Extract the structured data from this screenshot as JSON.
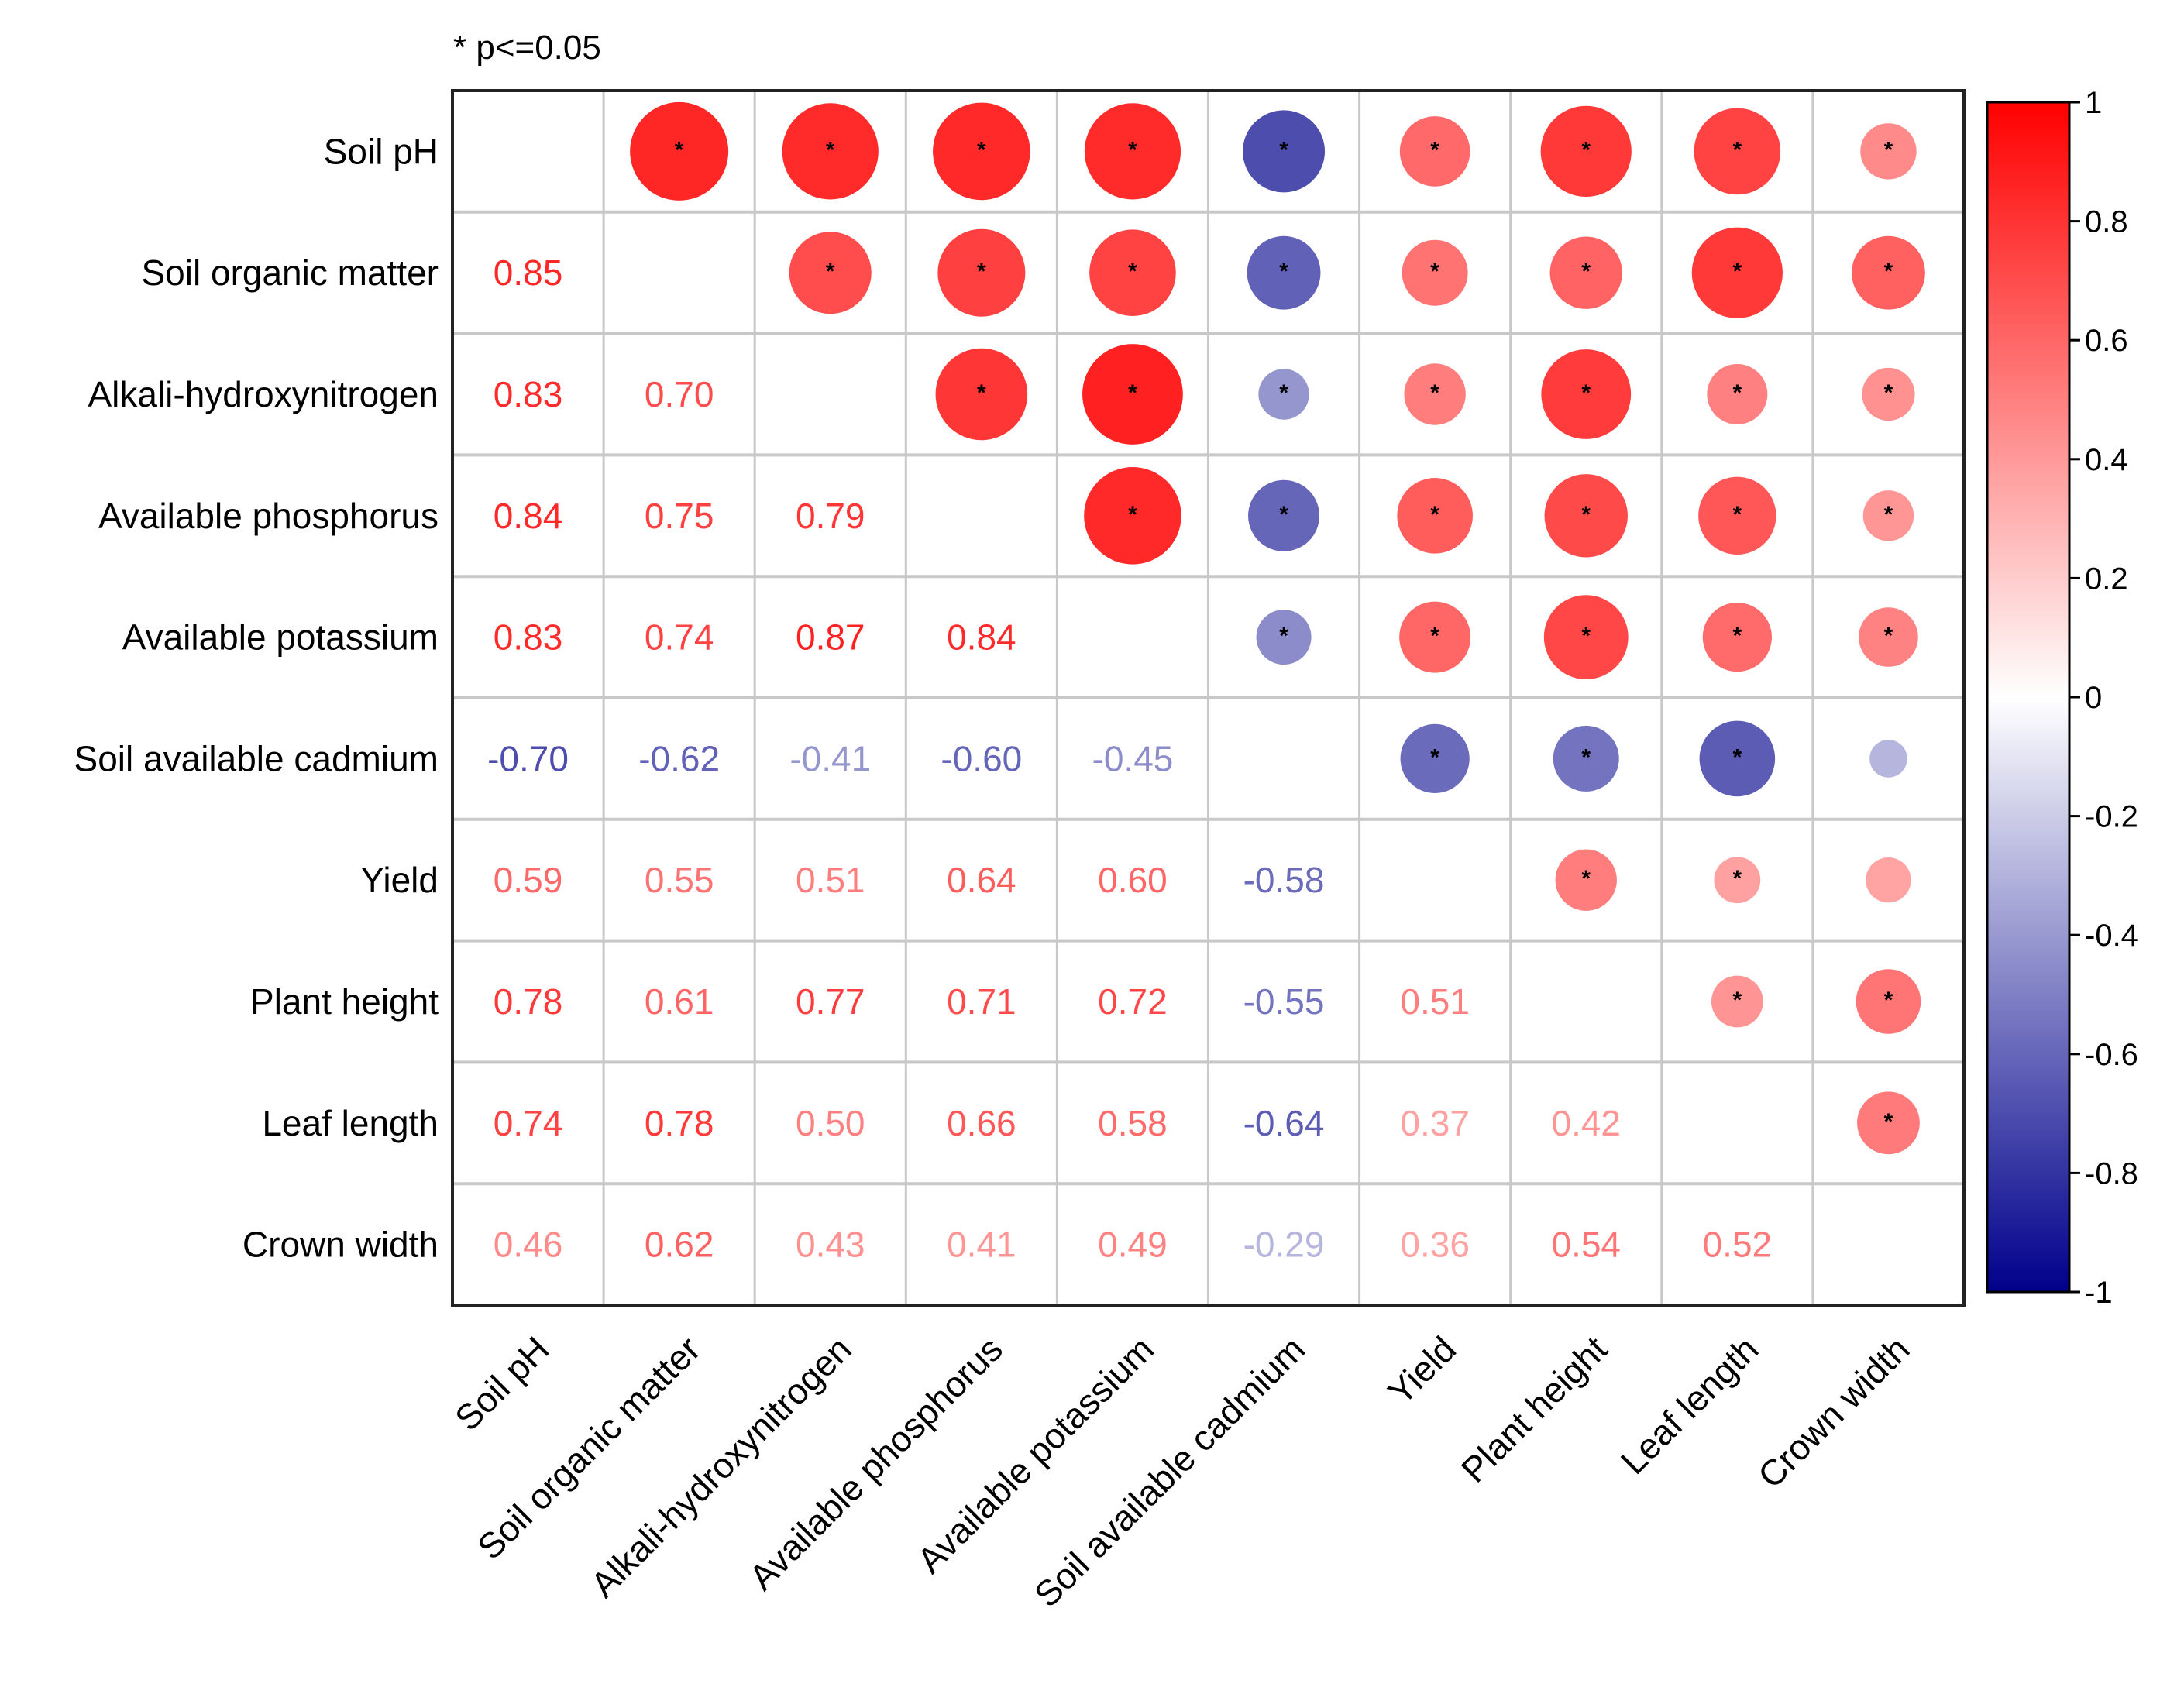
{
  "chart_data": {
    "type": "heatmap",
    "subtype": "correlation-matrix",
    "note": "* p<=0.05",
    "variables": [
      "Soil pH",
      "Soil organic matter",
      "Alkali-hydroxynitrogen",
      "Available phosphorus",
      "Available potassium",
      "Soil available cadmium",
      "Yield",
      "Plant height",
      "Leaf length",
      "Crown width"
    ],
    "lower_triangle_values": [
      [],
      [
        0.85
      ],
      [
        0.83,
        0.7
      ],
      [
        0.84,
        0.75,
        0.79
      ],
      [
        0.83,
        0.74,
        0.87,
        0.84
      ],
      [
        -0.7,
        -0.62,
        -0.41,
        -0.6,
        -0.45
      ],
      [
        0.59,
        0.55,
        0.51,
        0.64,
        0.6,
        -0.58
      ],
      [
        0.78,
        0.61,
        0.77,
        0.71,
        0.72,
        -0.55,
        0.51
      ],
      [
        0.74,
        0.78,
        0.5,
        0.66,
        0.58,
        -0.64,
        0.37,
        0.42
      ],
      [
        0.46,
        0.62,
        0.43,
        0.41,
        0.49,
        -0.29,
        0.36,
        0.54,
        0.52
      ]
    ],
    "lower_triangle_labels": [
      [],
      [
        "0.85"
      ],
      [
        "0.83",
        "0.70"
      ],
      [
        "0.84",
        "0.75",
        "0.79"
      ],
      [
        "0.83",
        "0.74",
        "0.87",
        "0.84"
      ],
      [
        "-0.70",
        "-0.62",
        "-0.41",
        "-0.60",
        "-0.45"
      ],
      [
        "0.59",
        "0.55",
        "0.51",
        "0.64",
        "0.60",
        "-0.58"
      ],
      [
        "0.78",
        "0.61",
        "0.77",
        "0.71",
        "0.72",
        "-0.55",
        "0.51"
      ],
      [
        "0.74",
        "0.78",
        "0.50",
        "0.66",
        "0.58",
        "-0.64",
        "0.37",
        "0.42"
      ],
      [
        "0.46",
        "0.62",
        "0.43",
        "0.41",
        "0.49",
        "-0.29",
        "0.36",
        "0.54",
        "0.52"
      ]
    ],
    "not_significant_pairs": [
      [
        9,
        5
      ],
      [
        9,
        6
      ]
    ],
    "significance_marker": "*",
    "colorbar": {
      "range": [
        -1,
        1
      ],
      "ticks": [
        1,
        0.8,
        0.6,
        0.4,
        0.2,
        0,
        -0.2,
        -0.4,
        -0.6,
        -0.8,
        -1
      ],
      "tick_labels": [
        "1",
        "0.8",
        "0.6",
        "0.4",
        "0.2",
        "0",
        "-0.2",
        "-0.4",
        "-0.6",
        "-0.8",
        "-1"
      ],
      "colors": {
        "positive": "#ff0000",
        "zero": "#ffffff",
        "negative": "#00008b"
      },
      "placement": "right"
    },
    "grid": true
  }
}
